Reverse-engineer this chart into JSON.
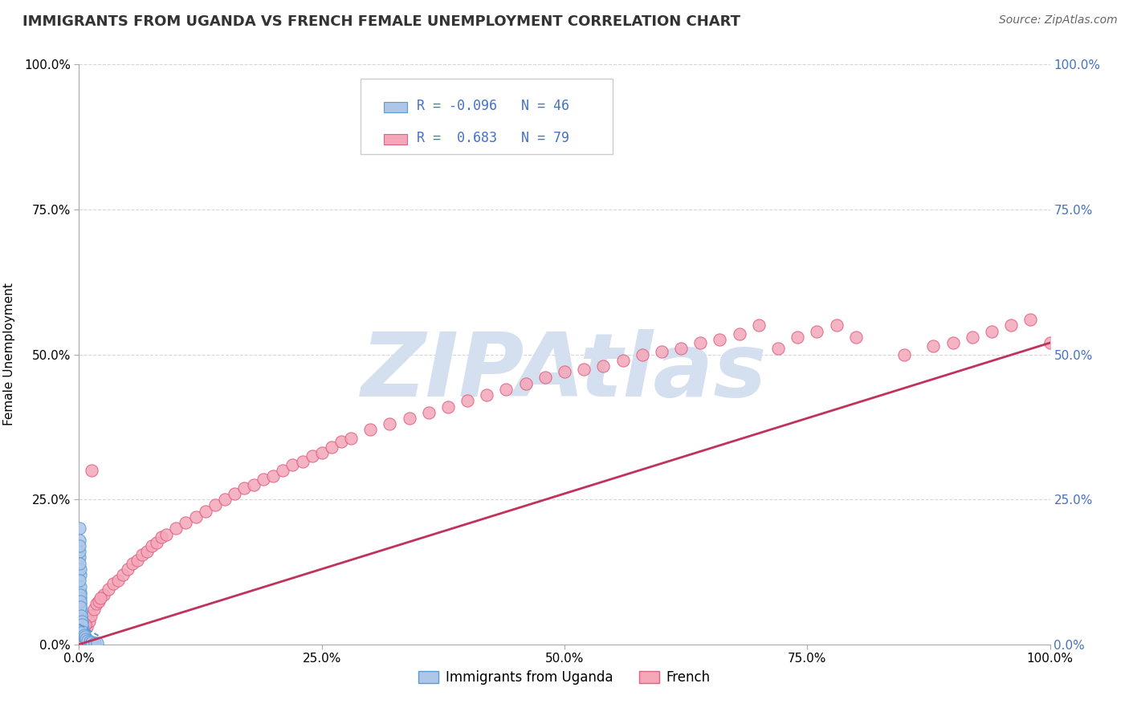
{
  "title": "IMMIGRANTS FROM UGANDA VS FRENCH FEMALE UNEMPLOYMENT CORRELATION CHART",
  "source": "Source: ZipAtlas.com",
  "ylabel": "Female Unemployment",
  "xlim": [
    0,
    100
  ],
  "ylim": [
    0,
    100
  ],
  "xtick_labels": [
    "0.0%",
    "25.0%",
    "50.0%",
    "75.0%",
    "100.0%"
  ],
  "xtick_values": [
    0,
    25,
    50,
    75,
    100
  ],
  "ytick_labels": [
    "0.0%",
    "25.0%",
    "50.0%",
    "75.0%",
    "100.0%"
  ],
  "ytick_values": [
    0,
    25,
    50,
    75,
    100
  ],
  "right_ytick_labels": [
    "0.0%",
    "25.0%",
    "50.0%",
    "75.0%",
    "100.0%"
  ],
  "series1": {
    "name": "Immigrants from Uganda",
    "R": -0.096,
    "N": 46,
    "color": "#aec6e8",
    "edge_color": "#5b9bd5",
    "x": [
      0.05,
      0.08,
      0.1,
      0.12,
      0.15,
      0.18,
      0.2,
      0.25,
      0.3,
      0.35,
      0.4,
      0.45,
      0.5,
      0.6,
      0.7,
      0.8,
      0.9,
      1.0,
      1.2,
      1.5,
      0.03,
      0.06,
      0.09,
      0.13,
      0.16,
      0.22,
      0.28,
      0.38,
      0.02,
      0.04,
      0.07,
      0.11,
      0.14,
      0.17,
      0.21,
      0.26,
      0.32,
      0.42,
      0.52,
      0.65,
      0.75,
      0.85,
      1.1,
      1.3,
      1.6,
      1.9
    ],
    "y": [
      20.0,
      15.0,
      12.0,
      9.0,
      7.0,
      5.5,
      4.5,
      3.5,
      3.0,
      2.5,
      2.0,
      1.8,
      1.5,
      1.2,
      1.0,
      0.8,
      0.5,
      0.5,
      0.3,
      0.2,
      18.0,
      16.0,
      13.0,
      10.0,
      8.0,
      6.0,
      4.0,
      2.8,
      17.0,
      14.0,
      11.0,
      8.5,
      7.5,
      6.5,
      5.0,
      4.0,
      3.5,
      2.2,
      1.6,
      1.3,
      1.0,
      0.7,
      0.5,
      0.4,
      0.3,
      0.2
    ]
  },
  "series2": {
    "name": "French",
    "R": 0.683,
    "N": 79,
    "color": "#f4a7b9",
    "edge_color": "#e06080",
    "x": [
      0.2,
      0.5,
      0.8,
      1.0,
      1.2,
      1.5,
      1.8,
      2.0,
      2.5,
      3.0,
      3.5,
      4.0,
      4.5,
      5.0,
      5.5,
      6.0,
      6.5,
      7.0,
      7.5,
      8.0,
      8.5,
      9.0,
      10.0,
      11.0,
      12.0,
      13.0,
      14.0,
      15.0,
      16.0,
      17.0,
      18.0,
      19.0,
      20.0,
      21.0,
      22.0,
      23.0,
      24.0,
      25.0,
      26.0,
      27.0,
      28.0,
      30.0,
      32.0,
      34.0,
      36.0,
      38.0,
      40.0,
      42.0,
      44.0,
      46.0,
      48.0,
      50.0,
      52.0,
      54.0,
      56.0,
      58.0,
      60.0,
      62.0,
      64.0,
      66.0,
      68.0,
      70.0,
      72.0,
      74.0,
      76.0,
      78.0,
      80.0,
      85.0,
      88.0,
      90.0,
      92.0,
      94.0,
      96.0,
      98.0,
      100.0,
      0.3,
      0.6,
      1.3,
      2.2
    ],
    "y": [
      1.0,
      2.0,
      3.0,
      4.0,
      5.0,
      6.0,
      7.0,
      7.5,
      8.5,
      9.5,
      10.5,
      11.0,
      12.0,
      13.0,
      14.0,
      14.5,
      15.5,
      16.0,
      17.0,
      17.5,
      18.5,
      19.0,
      20.0,
      21.0,
      22.0,
      23.0,
      24.0,
      25.0,
      26.0,
      27.0,
      27.5,
      28.5,
      29.0,
      30.0,
      31.0,
      31.5,
      32.5,
      33.0,
      34.0,
      35.0,
      35.5,
      37.0,
      38.0,
      39.0,
      40.0,
      41.0,
      42.0,
      43.0,
      44.0,
      45.0,
      46.0,
      47.0,
      47.5,
      48.0,
      49.0,
      50.0,
      50.5,
      51.0,
      52.0,
      52.5,
      53.5,
      55.0,
      51.0,
      53.0,
      54.0,
      55.0,
      53.0,
      50.0,
      51.5,
      52.0,
      53.0,
      54.0,
      55.0,
      56.0,
      52.0,
      1.5,
      3.5,
      30.0,
      8.0
    ]
  },
  "trend1_color": "#5b9bd5",
  "trend1_linewidth": 1.5,
  "trend2_color": "#c0325a",
  "trend2_linewidth": 2.0,
  "watermark": "ZIPAtlas",
  "watermark_color": "#d4dff0",
  "title_fontsize": 13,
  "axis_label_fontsize": 11,
  "tick_fontsize": 11,
  "legend_fontsize": 12,
  "background_color": "#ffffff",
  "grid_color": "#bbbbbb",
  "title_color": "#333333",
  "tick_color_right": "#4472c4",
  "legend_R_color": "#4472c4",
  "legend_label_color": "#333333"
}
